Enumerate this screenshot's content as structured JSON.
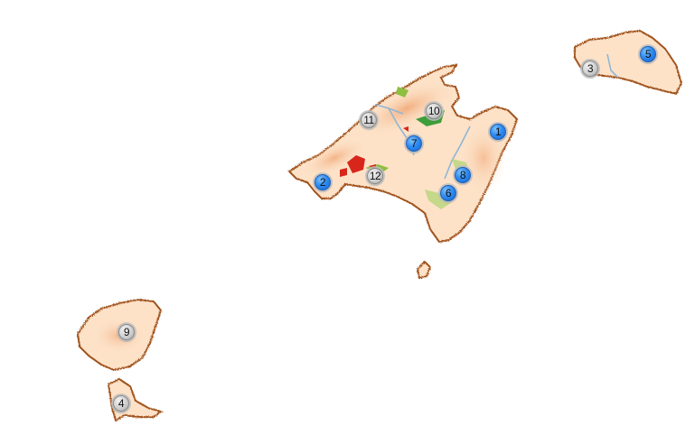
{
  "map": {
    "colors": {
      "sea": "#ffffff",
      "land": "#fde2c8",
      "land_relief": "#f3b489",
      "coast": "#a0521d",
      "vegetation": "#8fbf3f",
      "forest": "#3e9e3a",
      "urban": "#d8261b",
      "river": "#8fb6d6",
      "marker_blue": "#2f8cf0",
      "marker_grey": "#c9c9c9"
    },
    "markers": [
      {
        "id": "1",
        "style": "blue"
      },
      {
        "id": "2",
        "style": "blue"
      },
      {
        "id": "3",
        "style": "grey"
      },
      {
        "id": "4",
        "style": "grey"
      },
      {
        "id": "5",
        "style": "blue"
      },
      {
        "id": "6",
        "style": "blue"
      },
      {
        "id": "7",
        "style": "blue"
      },
      {
        "id": "8",
        "style": "blue"
      },
      {
        "id": "9",
        "style": "grey"
      },
      {
        "id": "10",
        "style": "grey"
      },
      {
        "id": "11",
        "style": "grey"
      },
      {
        "id": "12",
        "style": "grey"
      }
    ]
  }
}
